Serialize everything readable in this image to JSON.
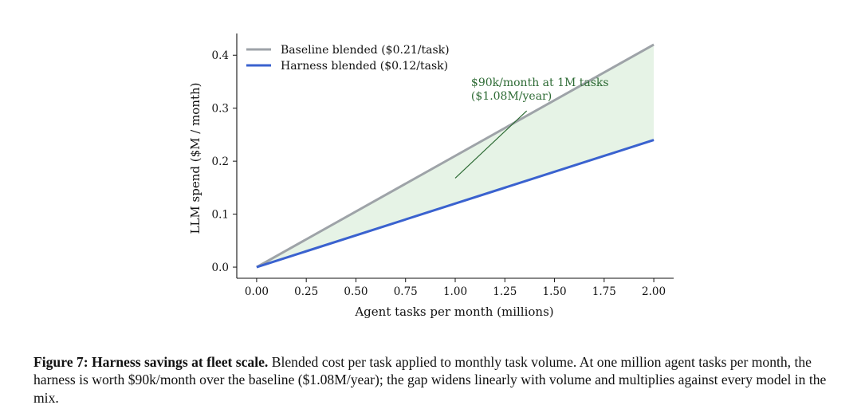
{
  "chart_data": {
    "type": "line",
    "xlabel": "Agent tasks per month (millions)",
    "ylabel": "LLM spend ($M / month)",
    "xlim": [
      -0.1,
      2.1
    ],
    "ylim": [
      -0.021,
      0.441
    ],
    "x_ticks": [
      "0.00",
      "0.25",
      "0.50",
      "0.75",
      "1.00",
      "1.25",
      "1.50",
      "1.75",
      "2.00"
    ],
    "x_tick_values": [
      0,
      0.25,
      0.5,
      0.75,
      1.0,
      1.25,
      1.5,
      1.75,
      2.0
    ],
    "y_ticks": [
      "0.0",
      "0.1",
      "0.2",
      "0.3",
      "0.4"
    ],
    "y_tick_values": [
      0,
      0.1,
      0.2,
      0.3,
      0.4
    ],
    "grid": false,
    "legend_position": "top-left",
    "series": [
      {
        "name": "Baseline blended ($0.21/task)",
        "x": [
          0,
          2.0
        ],
        "values": [
          0,
          0.42
        ],
        "color": "#9ea3a8"
      },
      {
        "name": "Harness blended ($0.12/task)",
        "x": [
          0,
          2.0
        ],
        "values": [
          0,
          0.24
        ],
        "color": "#3a62cf"
      }
    ],
    "fill_between": {
      "between": [
        "Baseline blended ($0.21/task)",
        "Harness blended ($0.12/task)"
      ],
      "color": "#e6f3e6"
    },
    "annotation": {
      "lines": [
        "$90k/month at 1M tasks",
        "($1.08M/year)"
      ],
      "color": "#2e6b35",
      "text_at": {
        "x": 1.08,
        "y": 0.342
      },
      "line_from": {
        "x": 1.0,
        "y": 0.168
      },
      "line_to": {
        "x": 1.36,
        "y": 0.295
      }
    }
  },
  "caption": {
    "label": "Figure 7: Harness savings at fleet scale.",
    "text": " Blended cost per task applied to monthly task volume. At one million agent tasks per month, the harness is worth $90k/month over the baseline ($1.08M/year); the gap widens linearly with volume and multiplies against every model in the mix."
  }
}
